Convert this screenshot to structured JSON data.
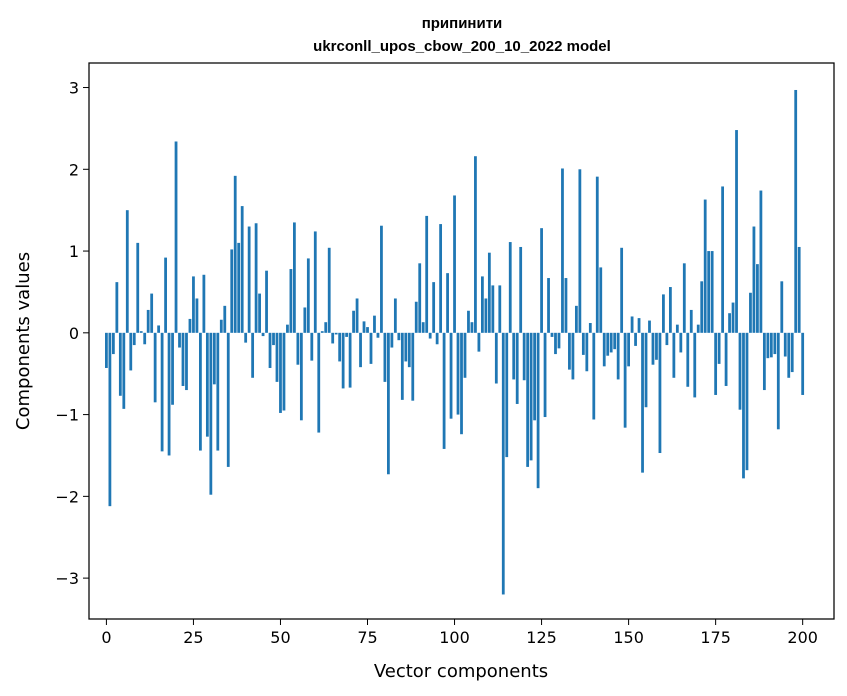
{
  "chart_data": {
    "type": "bar",
    "title": "припинити",
    "subtitle": "ukrconll_upos_cbow_200_10_2022 model",
    "xlabel": "Vector components",
    "ylabel": "Components values",
    "xlim": [
      -5,
      209
    ],
    "ylim": [
      -3.5,
      3.3
    ],
    "xticks": [
      0,
      25,
      50,
      75,
      100,
      125,
      150,
      175,
      200
    ],
    "xtick_labels": [
      "0",
      "25",
      "50",
      "75",
      "100",
      "125",
      "150",
      "175",
      "200"
    ],
    "yticks": [
      -3,
      -2,
      -1,
      0,
      1,
      2,
      3
    ],
    "ytick_labels": [
      "−3",
      "−2",
      "−1",
      "0",
      "1",
      "2",
      "3"
    ],
    "grid": false,
    "legend": "none",
    "bar_color": "#1f77b4",
    "values": [
      -0.43,
      -2.12,
      -0.26,
      0.62,
      -0.77,
      -0.93,
      1.5,
      -0.46,
      -0.15,
      1.1,
      0.02,
      -0.14,
      0.28,
      0.48,
      -0.85,
      0.09,
      -1.45,
      0.92,
      -1.5,
      -0.88,
      2.34,
      -0.18,
      -0.65,
      -0.7,
      0.17,
      0.69,
      0.42,
      -1.44,
      0.71,
      -1.27,
      -1.98,
      -0.63,
      -1.44,
      0.16,
      0.33,
      -1.64,
      1.02,
      1.92,
      1.1,
      1.55,
      -0.12,
      1.3,
      -0.55,
      1.34,
      0.48,
      -0.04,
      0.76,
      -0.43,
      -0.15,
      -0.6,
      -0.98,
      -0.95,
      0.1,
      0.78,
      1.35,
      -0.39,
      -1.07,
      0.31,
      0.91,
      -0.34,
      1.24,
      -1.22,
      0.02,
      0.13,
      1.04,
      -0.13,
      -0.02,
      -0.35,
      -0.68,
      -0.05,
      -0.67,
      0.27,
      0.42,
      -0.42,
      0.14,
      0.07,
      -0.38,
      0.21,
      -0.06,
      1.31,
      -0.6,
      -1.73,
      -0.18,
      0.42,
      -0.09,
      -0.82,
      -0.35,
      -0.42,
      -0.83,
      0.38,
      0.85,
      0.13,
      1.43,
      -0.07,
      0.62,
      -0.14,
      1.33,
      -1.42,
      0.73,
      -1.05,
      1.68,
      -1.0,
      -1.24,
      -0.55,
      0.27,
      0.13,
      2.16,
      -0.23,
      0.69,
      0.42,
      0.98,
      0.58,
      -0.62,
      0.58,
      -3.2,
      -1.52,
      1.11,
      -0.57,
      -0.87,
      1.05,
      -0.58,
      -1.64,
      -1.56,
      -1.07,
      -1.9,
      1.28,
      -1.03,
      0.67,
      -0.05,
      -0.26,
      -0.19,
      2.01,
      0.67,
      -0.45,
      -0.57,
      0.33,
      2.0,
      -0.27,
      -0.47,
      0.12,
      -1.06,
      1.91,
      0.8,
      -0.41,
      -0.28,
      -0.24,
      -0.2,
      -0.57,
      1.04,
      -1.16,
      -0.41,
      0.2,
      -0.16,
      0.18,
      -1.71,
      -0.91,
      0.15,
      -0.39,
      -0.33,
      -1.47,
      0.47,
      -0.15,
      0.56,
      -0.55,
      0.1,
      -0.24,
      0.85,
      -0.66,
      0.28,
      -0.79,
      0.1,
      0.63,
      1.63,
      1.0,
      1.0,
      -0.76,
      -0.38,
      1.79,
      -0.65,
      0.24,
      0.37,
      2.48,
      -0.94,
      -1.78,
      -1.68,
      0.49,
      1.3,
      0.84,
      1.74,
      -0.7,
      -0.31,
      -0.3,
      -0.26,
      -1.18,
      0.63,
      -0.29,
      -0.55,
      -0.48,
      2.97,
      1.05,
      -0.76
    ]
  }
}
